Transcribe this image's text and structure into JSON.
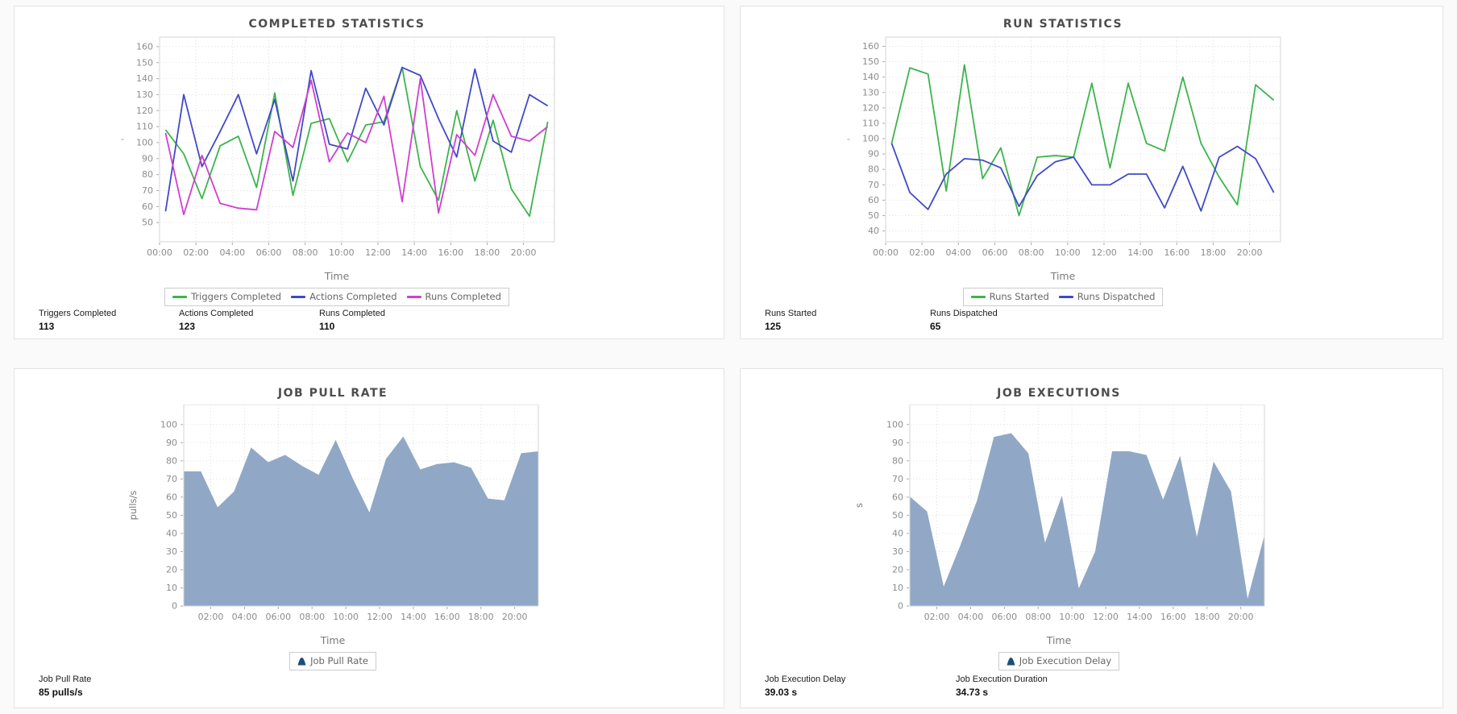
{
  "chart_data": [
    {
      "type": "line",
      "title": "COMPLETED STATISTICS",
      "xlabel": "Time",
      "ylabel": "-",
      "ylim": [
        38,
        166
      ],
      "yticks": [
        50,
        60,
        70,
        80,
        90,
        100,
        110,
        120,
        130,
        140,
        150,
        160
      ],
      "xticks": [
        "00:00",
        "02:00",
        "04:00",
        "06:00",
        "08:00",
        "10:00",
        "12:00",
        "14:00",
        "16:00",
        "18:00",
        "20:00"
      ],
      "x_domain_hours": [
        0,
        21.7
      ],
      "x_start_hour": 0.33,
      "x_step_hours": 1,
      "grid": true,
      "legend_position": "bottom",
      "series": [
        {
          "name": "Triggers Completed",
          "color": "#3cb44c",
          "values": [
            108,
            93,
            65,
            98,
            104,
            72,
            131,
            67,
            112,
            115,
            88,
            111,
            113,
            147,
            85,
            64,
            120,
            76,
            114,
            71,
            54,
            113
          ]
        },
        {
          "name": "Actions Completed",
          "color": "#4049c8",
          "values": [
            57,
            130,
            85,
            107,
            130,
            93,
            127,
            76,
            145,
            99,
            96,
            134,
            111,
            147,
            142,
            115,
            91,
            146,
            101,
            94,
            130,
            123
          ]
        },
        {
          "name": "Runs Completed",
          "color": "#cf3fcf",
          "values": [
            106,
            55,
            92,
            62,
            59,
            58,
            107,
            97,
            139,
            88,
            106,
            100,
            129,
            63,
            140,
            56,
            105,
            92,
            130,
            104,
            101,
            110
          ]
        }
      ]
    },
    {
      "type": "line",
      "title": "RUN STATISTICS",
      "xlabel": "Time",
      "ylabel": "-",
      "ylim": [
        33,
        166
      ],
      "yticks": [
        40,
        50,
        60,
        70,
        80,
        90,
        100,
        110,
        120,
        130,
        140,
        150,
        160
      ],
      "xticks": [
        "00:00",
        "02:00",
        "04:00",
        "06:00",
        "08:00",
        "10:00",
        "12:00",
        "14:00",
        "16:00",
        "18:00",
        "20:00"
      ],
      "x_domain_hours": [
        0,
        21.7
      ],
      "x_start_hour": 0.33,
      "x_step_hours": 1,
      "grid": true,
      "legend_position": "bottom",
      "series": [
        {
          "name": "Runs Started",
          "color": "#3cb44c",
          "values": [
            97,
            146,
            142,
            66,
            148,
            74,
            94,
            50,
            88,
            89,
            88,
            136,
            81,
            136,
            97,
            92,
            140,
            97,
            75,
            57,
            135,
            125
          ]
        },
        {
          "name": "Runs Dispatched",
          "color": "#4049c8",
          "values": [
            97,
            65,
            54,
            77,
            87,
            86,
            81,
            56,
            76,
            85,
            88,
            70,
            70,
            77,
            77,
            55,
            82,
            53,
            88,
            95,
            87,
            65
          ]
        }
      ]
    },
    {
      "type": "area",
      "title": "JOB PULL RATE",
      "xlabel": "Time",
      "ylabel": "pulls/s",
      "ylim": [
        0,
        111
      ],
      "yticks": [
        0,
        10,
        20,
        30,
        40,
        50,
        60,
        70,
        80,
        90,
        100
      ],
      "xticks": [
        "02:00",
        "04:00",
        "06:00",
        "08:00",
        "10:00",
        "12:00",
        "14:00",
        "16:00",
        "18:00",
        "20:00"
      ],
      "x_domain_hours": [
        0.4,
        21.4
      ],
      "x_start_hour": 0.4,
      "x_step_hours": 1,
      "grid": true,
      "legend_position": "bottom",
      "legend_icon_color": "#1b4e79",
      "series": [
        {
          "name": "Job Pull Rate",
          "color": "#90a8c6",
          "values": [
            74,
            74,
            54,
            63,
            87,
            79,
            83,
            77,
            72,
            91,
            70,
            51,
            81,
            93,
            75,
            78,
            79,
            76,
            59,
            58,
            84,
            85
          ]
        }
      ]
    },
    {
      "type": "area",
      "title": "JOB EXECUTIONS",
      "xlabel": "Time",
      "ylabel": "s",
      "ylim": [
        0,
        111
      ],
      "yticks": [
        0,
        10,
        20,
        30,
        40,
        50,
        60,
        70,
        80,
        90,
        100
      ],
      "xticks": [
        "02:00",
        "04:00",
        "06:00",
        "08:00",
        "10:00",
        "12:00",
        "14:00",
        "16:00",
        "18:00",
        "20:00"
      ],
      "x_domain_hours": [
        0.4,
        21.4
      ],
      "x_start_hour": 0.4,
      "x_step_hours": 1,
      "grid": true,
      "legend_position": "bottom",
      "legend_icon_color": "#1b4e79",
      "series": [
        {
          "name": "Job Execution Delay",
          "color": "#90a8c6",
          "values": [
            60,
            52,
            10,
            33,
            58,
            93,
            95,
            84,
            34,
            60,
            9,
            30,
            85,
            85,
            83,
            58,
            82,
            37,
            79,
            63,
            3,
            38
          ]
        }
      ]
    }
  ],
  "panels": [
    {
      "stats": [
        {
          "label": "Triggers Completed",
          "value": "113"
        },
        {
          "label": "Actions Completed",
          "value": "123"
        },
        {
          "label": "Runs Completed",
          "value": "110"
        }
      ]
    },
    {
      "stats": [
        {
          "label": "Runs Started",
          "value": "125"
        },
        {
          "label": "Runs Dispatched",
          "value": "65"
        }
      ]
    },
    {
      "stats": [
        {
          "label": "Job Pull Rate",
          "value": "85 pulls/s"
        }
      ]
    },
    {
      "stats": [
        {
          "label": "Job Execution Delay",
          "value": "39.03 s"
        },
        {
          "label": "Job Execution Duration",
          "value": "34.73 s"
        }
      ]
    }
  ],
  "style": {
    "grid_color": "#e2e2e2",
    "plot_border_color": "#d5d5d5",
    "tick_text_color": "#8c8c8c",
    "tick_mark_color": "#aaaaaa"
  }
}
